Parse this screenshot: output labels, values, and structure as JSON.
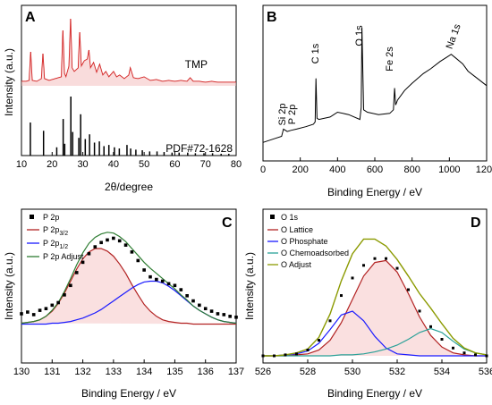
{
  "chart_data": [
    {
      "panel": "A",
      "type": "line",
      "xlabel": "2θ/degree",
      "ylabel": "Intensity (a.u.)",
      "xlim": [
        10,
        80
      ],
      "x_ticks": [
        10,
        20,
        30,
        40,
        50,
        60,
        70,
        80
      ],
      "series": [
        {
          "name": "TMP",
          "color": "#cc0000",
          "x": [
            10,
            11.5,
            12.5,
            13,
            13.5,
            15,
            16.5,
            17,
            17.5,
            19,
            21,
            23,
            23.5,
            24,
            24.5,
            25.5,
            26,
            26.5,
            27.2,
            28.5,
            29,
            29.5,
            30.5,
            31.5,
            32,
            32.5,
            33.5,
            34.5,
            35.5,
            36.5,
            37.5,
            38.5,
            40,
            41,
            42,
            43.5,
            45,
            45.5,
            46.5,
            48,
            50,
            52,
            54,
            56,
            58,
            60,
            62,
            64,
            65,
            66,
            68,
            70,
            72,
            74,
            76,
            78,
            80
          ],
          "values": [
            5,
            5,
            6,
            38,
            6,
            5,
            8,
            36,
            8,
            6,
            8,
            10,
            62,
            14,
            10,
            22,
            75,
            20,
            16,
            20,
            60,
            22,
            28,
            30,
            40,
            20,
            26,
            15,
            24,
            12,
            16,
            10,
            16,
            10,
            12,
            8,
            12,
            20,
            9,
            8,
            10,
            6,
            7,
            5,
            6,
            5,
            6,
            5,
            9,
            5,
            5,
            4,
            5,
            4,
            4,
            4,
            4
          ]
        }
      ],
      "reference": {
        "name": "PDF#72-1628",
        "color": "#000000",
        "x": [
          12.9,
          17.2,
          21.5,
          23.6,
          24.1,
          26.1,
          26.7,
          28.7,
          29.3,
          30.8,
          32.2,
          33.8,
          35.4,
          36.9,
          38.5,
          40.3,
          41.9,
          44.4,
          45.6,
          47.3,
          49.4,
          51.8,
          54.2,
          56.5,
          59.1,
          61.4,
          64.2,
          66.7,
          69.5,
          72.3,
          75.1,
          77.6
        ],
        "values": [
          56,
          42,
          14,
          62,
          20,
          100,
          40,
          30,
          70,
          28,
          36,
          22,
          24,
          16,
          18,
          14,
          12,
          18,
          12,
          10,
          9,
          7,
          7,
          6,
          5,
          5,
          5,
          4,
          4,
          4,
          3,
          3
        ]
      },
      "annotations": [
        "TMP",
        "PDF#72-1628"
      ]
    },
    {
      "panel": "B",
      "type": "line",
      "xlabel": "Binding Energy / eV",
      "xlim": [
        0,
        1200
      ],
      "x_ticks": [
        0,
        200,
        400,
        600,
        800,
        1000,
        1200
      ],
      "series": [
        {
          "name": "survey",
          "color": "#000000",
          "x": [
            0,
            60,
            100,
            110,
            130,
            150,
            180,
            230,
            270,
            280,
            284,
            290,
            300,
            360,
            400,
            460,
            520,
            527,
            531,
            540,
            560,
            620,
            680,
            700,
            706,
            712,
            722,
            760,
            800,
            860,
            900,
            950,
            990,
            1010,
            1072,
            1100,
            1150,
            1200
          ],
          "values": [
            5,
            8,
            10,
            16,
            14,
            15,
            16,
            18,
            20,
            22,
            58,
            25,
            24,
            26,
            30,
            28,
            24,
            34,
            100,
            32,
            30,
            28,
            29,
            32,
            50,
            36,
            40,
            48,
            54,
            62,
            66,
            72,
            76,
            78,
            70,
            64,
            58,
            52
          ]
        }
      ],
      "annotations": [
        "C 1s",
        "O 1s",
        "Fe 2s",
        "Na 1s",
        "Si 2p",
        "P 2p"
      ]
    },
    {
      "panel": "C",
      "type": "scatter",
      "xlabel": "Binding Energy / eV",
      "ylabel": "Intensity (a.u.)",
      "xlim": [
        130,
        137
      ],
      "x_ticks": [
        130,
        131,
        132,
        133,
        134,
        135,
        136,
        137
      ],
      "legend": [
        "P 2p",
        "P 2p3/2",
        "P 2p1/2",
        "P 2p Adjust"
      ],
      "series_colors": {
        "raw": "#000000",
        "p32": "#b22222",
        "p12": "#1a1aff",
        "adjust": "#2e7d32",
        "fill": "#f5c6c6"
      },
      "x": [
        130.0,
        130.2,
        130.4,
        130.6,
        130.8,
        131.0,
        131.2,
        131.4,
        131.6,
        131.8,
        132.0,
        132.2,
        132.4,
        132.6,
        132.8,
        133.0,
        133.2,
        133.4,
        133.6,
        133.8,
        134.0,
        134.2,
        134.4,
        134.6,
        134.8,
        135.0,
        135.2,
        135.4,
        135.6,
        135.8,
        136.0,
        136.2,
        136.4,
        136.6,
        136.8,
        137.0
      ],
      "raw": [
        0.12,
        0.14,
        0.11,
        0.16,
        0.18,
        0.22,
        0.25,
        0.34,
        0.45,
        0.6,
        0.72,
        0.82,
        0.9,
        0.95,
        0.98,
        1.0,
        0.97,
        0.92,
        0.84,
        0.74,
        0.63,
        0.55,
        0.52,
        0.5,
        0.47,
        0.45,
        0.4,
        0.33,
        0.27,
        0.22,
        0.18,
        0.15,
        0.12,
        0.11,
        0.09,
        0.08
      ],
      "p32": [
        0.01,
        0.02,
        0.03,
        0.05,
        0.09,
        0.15,
        0.24,
        0.36,
        0.5,
        0.64,
        0.76,
        0.84,
        0.88,
        0.88,
        0.85,
        0.79,
        0.7,
        0.59,
        0.46,
        0.34,
        0.23,
        0.15,
        0.09,
        0.05,
        0.03,
        0.02,
        0.01,
        0.01,
        0.0,
        0.0,
        0.0,
        0.0,
        0.0,
        0.0,
        0.0,
        0.0
      ],
      "p12": [
        0.0,
        0.0,
        0.0,
        0.0,
        0.0,
        0.01,
        0.01,
        0.02,
        0.03,
        0.05,
        0.07,
        0.1,
        0.13,
        0.17,
        0.22,
        0.27,
        0.32,
        0.37,
        0.42,
        0.46,
        0.49,
        0.5,
        0.5,
        0.48,
        0.44,
        0.39,
        0.33,
        0.27,
        0.21,
        0.16,
        0.12,
        0.08,
        0.05,
        0.03,
        0.02,
        0.01
      ],
      "adjust": [
        0.01,
        0.02,
        0.03,
        0.05,
        0.09,
        0.16,
        0.25,
        0.38,
        0.53,
        0.69,
        0.83,
        0.94,
        1.01,
        1.05,
        1.07,
        1.06,
        1.02,
        0.96,
        0.88,
        0.8,
        0.72,
        0.65,
        0.59,
        0.53,
        0.47,
        0.41,
        0.34,
        0.28,
        0.21,
        0.16,
        0.12,
        0.08,
        0.05,
        0.03,
        0.02,
        0.01
      ]
    },
    {
      "panel": "D",
      "type": "line",
      "xlabel": "Binding Energy / eV",
      "ylabel": "Intensity (a.u.)",
      "xlim": [
        526,
        536
      ],
      "x_ticks": [
        526,
        528,
        530,
        532,
        534,
        536
      ],
      "legend": [
        "O 1s",
        "O Lattice",
        "O Phosphate",
        "O Chemoadsorbed",
        "O Adjust"
      ],
      "series_colors": {
        "raw": "#000000",
        "lattice": "#b22222",
        "phosphate": "#1a1aff",
        "chemo": "#2aa198",
        "adjust": "#8b9a00",
        "fill": "#f5c6c6"
      },
      "x": [
        526.0,
        526.5,
        527.0,
        527.5,
        528.0,
        528.5,
        529.0,
        529.5,
        530.0,
        530.5,
        531.0,
        531.5,
        532.0,
        532.5,
        533.0,
        533.5,
        534.0,
        534.5,
        535.0,
        535.5,
        536.0
      ],
      "raw": [
        0.0,
        0.0,
        0.01,
        0.02,
        0.06,
        0.16,
        0.36,
        0.62,
        0.8,
        0.93,
        1.0,
        1.0,
        0.9,
        0.68,
        0.46,
        0.3,
        0.17,
        0.08,
        0.03,
        0.01,
        0.0
      ],
      "lattice": [
        0.0,
        0.0,
        0.0,
        0.01,
        0.02,
        0.06,
        0.16,
        0.34,
        0.58,
        0.82,
        0.96,
        0.98,
        0.86,
        0.64,
        0.4,
        0.21,
        0.09,
        0.03,
        0.01,
        0.0,
        0.0
      ],
      "phosphate": [
        0.0,
        0.0,
        0.01,
        0.02,
        0.05,
        0.13,
        0.27,
        0.42,
        0.46,
        0.36,
        0.2,
        0.08,
        0.02,
        0.01,
        0.0,
        0.0,
        0.0,
        0.0,
        0.0,
        0.0,
        0.0
      ],
      "chemo": [
        0.0,
        0.0,
        0.0,
        0.0,
        0.0,
        0.0,
        0.0,
        0.01,
        0.01,
        0.02,
        0.04,
        0.07,
        0.11,
        0.17,
        0.24,
        0.28,
        0.24,
        0.15,
        0.07,
        0.03,
        0.01
      ],
      "adjust": [
        0.0,
        0.0,
        0.01,
        0.03,
        0.07,
        0.19,
        0.43,
        0.77,
        1.05,
        1.2,
        1.2,
        1.13,
        0.99,
        0.82,
        0.64,
        0.49,
        0.33,
        0.18,
        0.08,
        0.03,
        0.01
      ]
    }
  ],
  "labels": {
    "panel_a": "A",
    "panel_b": "B",
    "panel_c": "C",
    "panel_d": "D",
    "a_xlabel": "2θ/degree",
    "a_ylabel": "Intensity (a.u.)",
    "a_tmp": "TMP",
    "a_pdf": "PDF#72-1628",
    "b_xlabel": "Binding Energy / eV",
    "b_c1s": "C 1s",
    "b_o1s": "O 1s",
    "b_fe2s": "Fe 2s",
    "b_na1s": "Na 1s",
    "b_si2p": "Si 2p",
    "b_p2p": "P 2p",
    "c_xlabel": "Binding Energy / eV",
    "c_ylabel": "Intensity (a.u.)",
    "c_leg_raw": "P 2p",
    "c_leg_32_base": "P 2p",
    "c_leg_32_sub": "3/2",
    "c_leg_12_base": "P 2p",
    "c_leg_12_sub": "1/2",
    "c_leg_adj": "P 2p Adjust",
    "d_xlabel": "Binding Energy / eV",
    "d_ylabel": "Intensity (a.u.)",
    "d_leg_raw": "O 1s",
    "d_leg_lattice": "O Lattice",
    "d_leg_phosphate": "O Phosphate",
    "d_leg_chemo": "O Chemoadsorbed",
    "d_leg_adj": "O Adjust"
  }
}
